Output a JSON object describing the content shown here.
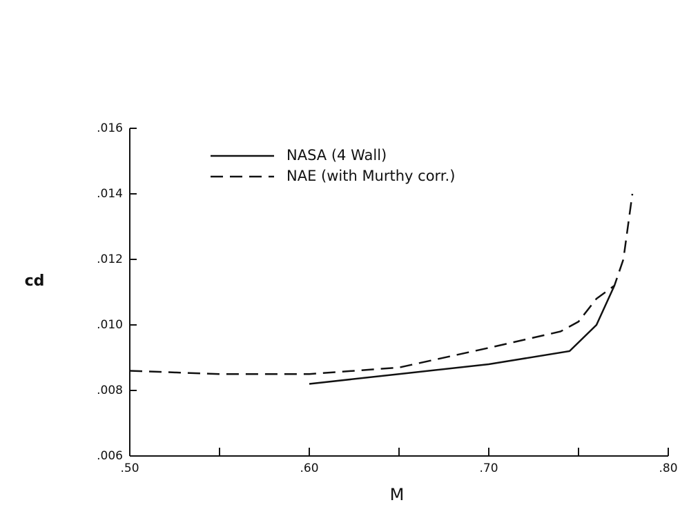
{
  "chart_data": {
    "type": "line",
    "xlabel": "M",
    "ylabel": "cd",
    "xlim": [
      0.5,
      0.8
    ],
    "xticks": [
      {
        "value": 0.5,
        "label": ".50"
      },
      {
        "value": 0.6,
        "label": ".60"
      },
      {
        "value": 0.7,
        "label": ".70"
      },
      {
        "value": 0.8,
        "label": ".80"
      }
    ],
    "xminorticks": [
      0.55,
      0.65,
      0.75
    ],
    "ylim": [
      0.006,
      0.016
    ],
    "yticks": [
      {
        "value": 0.006,
        "label": ".006"
      },
      {
        "value": 0.008,
        "label": ".008"
      },
      {
        "value": 0.01,
        "label": ".010"
      },
      {
        "value": 0.012,
        "label": ".012"
      },
      {
        "value": 0.014,
        "label": ".014"
      },
      {
        "value": 0.016,
        "label": ".016"
      }
    ],
    "grid": false,
    "legend": "upper-left",
    "series": [
      {
        "name": "NASA (4 Wall)",
        "color": "#111111",
        "dash": false,
        "x": [
          0.6,
          0.65,
          0.7,
          0.745,
          0.76,
          0.77
        ],
        "values": [
          0.0082,
          0.0085,
          0.0088,
          0.0092,
          0.01,
          0.0112
        ]
      },
      {
        "name": "NAE (with Murthy corr.)",
        "color": "#111111",
        "dash": true,
        "x": [
          0.5,
          0.55,
          0.6,
          0.65,
          0.7,
          0.74,
          0.75,
          0.76,
          0.77,
          0.775,
          0.78
        ],
        "values": [
          0.0086,
          0.0085,
          0.0085,
          0.0087,
          0.0093,
          0.0098,
          0.0101,
          0.0108,
          0.0112,
          0.012,
          0.014
        ]
      }
    ]
  }
}
